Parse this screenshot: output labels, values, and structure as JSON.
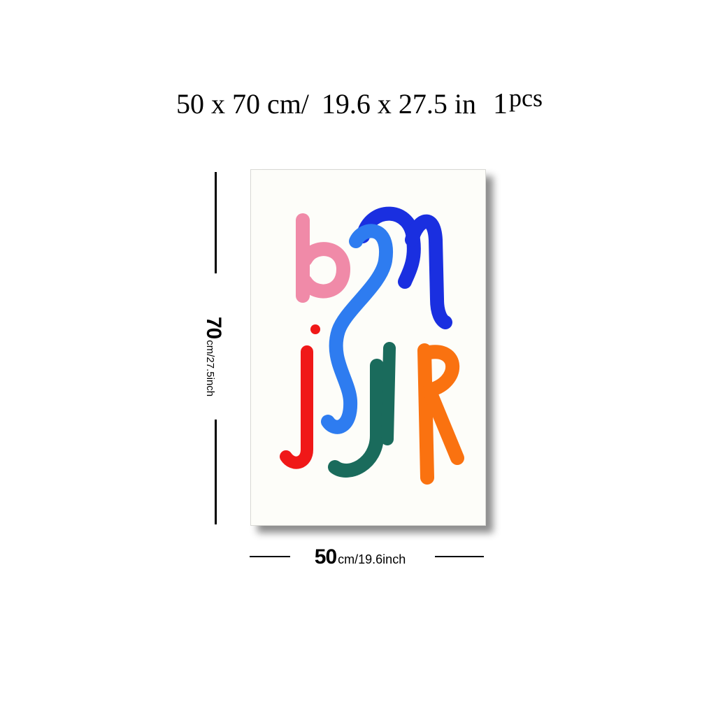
{
  "headline": {
    "size_cm": "50 x 70 cm/",
    "size_in": "19.6 x 27.5 in",
    "qty_number": "1",
    "qty_unit": "pcs"
  },
  "dimensions": {
    "height_value": "70",
    "height_unit": "cm/27.5inch",
    "width_value": "50",
    "width_unit": "cm/19.6inch"
  },
  "artwork": {
    "background": "#fdfdf9",
    "colors": {
      "pink": "#f08aa8",
      "navy_blue": "#1a2fe0",
      "light_blue": "#2e7cf0",
      "red": "#f01818",
      "teal": "#1a6b5c",
      "orange": "#fa7210"
    }
  }
}
